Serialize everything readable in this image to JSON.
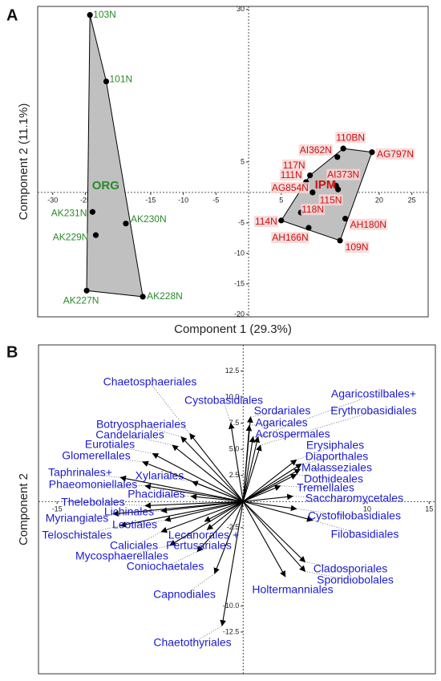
{
  "chart_data": [
    {
      "type": "scatter",
      "panel": "A",
      "x_label": "Component 1 (29.3%)",
      "y_label": "Component 2 (11.1%)",
      "xlim": [
        -32.3,
        27.5
      ],
      "ylim": [
        -20.4,
        30.5
      ],
      "xticks": [
        -30,
        -25,
        -20,
        -15,
        -10,
        -5,
        5,
        10,
        15,
        20,
        25
      ],
      "yticks": [
        -20,
        -15,
        -10,
        -5,
        5,
        30
      ],
      "hull_color": "#c0c0c0",
      "series": [
        {
          "name": "ORG",
          "color": "#2a8a2a",
          "labels": [
            "103N",
            "101N",
            "AK231N",
            "AK229N",
            "AK230N",
            "AK227N",
            "AK228N"
          ],
          "x": [
            -24.3,
            -21.8,
            -23.9,
            -23.4,
            -18.8,
            -24.8,
            -16.2
          ],
          "y": [
            29.1,
            18.2,
            -3.2,
            -7.0,
            -5.1,
            -16.1,
            -17.1
          ]
        },
        {
          "name": "IPM",
          "color": "#cc1111",
          "labels": [
            "110BN",
            "AG797N",
            "AI362N",
            "117N",
            "111N",
            "AI373N",
            "AG854N",
            "115N",
            "118N",
            "114N",
            "AH166N",
            "AH180N",
            "109N"
          ],
          "x": [
            14.5,
            18.9,
            13.6,
            9.4,
            8.8,
            13.4,
            9.8,
            13.7,
            8.0,
            5.0,
            9.2,
            14.8,
            14.0
          ],
          "y": [
            7.2,
            6.6,
            5.8,
            2.8,
            1.7,
            1.1,
            0.0,
            0.5,
            -3.3,
            -4.6,
            -5.8,
            -4.3,
            -7.9
          ]
        }
      ]
    },
    {
      "type": "biplot",
      "panel": "B",
      "x_label": "Component 1",
      "y_label": "Component 2",
      "xlim": [
        -16.5,
        15.5
      ],
      "ylim": [
        -16.5,
        15.0
      ],
      "xticks": [
        -15,
        10,
        15
      ],
      "yticks": [
        12.5,
        {
          "value": 10,
          "label": "10.0"
        },
        7.5,
        {
          "value": 5,
          "label": "5.0"
        },
        2.5,
        -2.5,
        {
          "value": -10,
          "label": "-10.0"
        },
        -12.5
      ],
      "color": "#000000",
      "label_color": "#1c1ccf",
      "categories": [
        "Chaetosphaeriales",
        "Cystobasidiales",
        "Sordariales",
        "Agaricales",
        "Acrospermales",
        "Agaricostilbales+",
        "Erythrobasidiales",
        "Erysiphales",
        "Diaporthales",
        "Malasseziales",
        "Dothideales",
        "Tremellales",
        "Saccharomycetales",
        "Cystofilobasidiales",
        "Filobasidiales",
        "Cladosporiales",
        "Sporidiobolales",
        "Holtermanniales",
        "Chaetothyriales",
        "Capnodiales",
        "Coniochaetales",
        "Lecanorales +",
        "Pertusariales",
        "Mycosphaerellales",
        "Caliciales",
        "Teloschistales",
        "Leotiales",
        "Myriangiales",
        "Lichinales",
        "Thelebolales",
        "Phacidiales",
        "Phaeomoniellales",
        "Taphrinales+",
        "Xylariales",
        "Glomerellales",
        "Eurotiales",
        "Candelariales",
        "Botryosphaeriales"
      ],
      "x": [
        -4.3,
        -1.0,
        0.6,
        0.5,
        0.8,
        1.2,
        1.4,
        4.3,
        4.7,
        4.6,
        4.3,
        3.0,
        4.0,
        4.3,
        5.6,
        5.0,
        5.0,
        3.4,
        -1.7,
        -2.3,
        -3.7,
        -3.1,
        -2.9,
        -5.9,
        -6.6,
        -9.9,
        -6.3,
        -10.5,
        -6.6,
        -7.9,
        -4.2,
        -7.9,
        -9.9,
        -4.1,
        -8.1,
        -7.3,
        -5.7,
        -5.0
      ],
      "y": [
        6.5,
        7.5,
        8.1,
        7.3,
        6.2,
        6.2,
        5.4,
        4.0,
        3.6,
        3.1,
        2.6,
        1.5,
        0.5,
        -0.7,
        -1.8,
        -5.8,
        -6.7,
        -7.2,
        -11.9,
        -6.9,
        -4.8,
        -1.9,
        -2.7,
        -4.2,
        -2.9,
        -2.3,
        -1.8,
        -1.2,
        -0.9,
        -0.4,
        0.5,
        1.5,
        2.3,
        1.9,
        3.8,
        4.6,
        5.4,
        6.2
      ]
    }
  ]
}
